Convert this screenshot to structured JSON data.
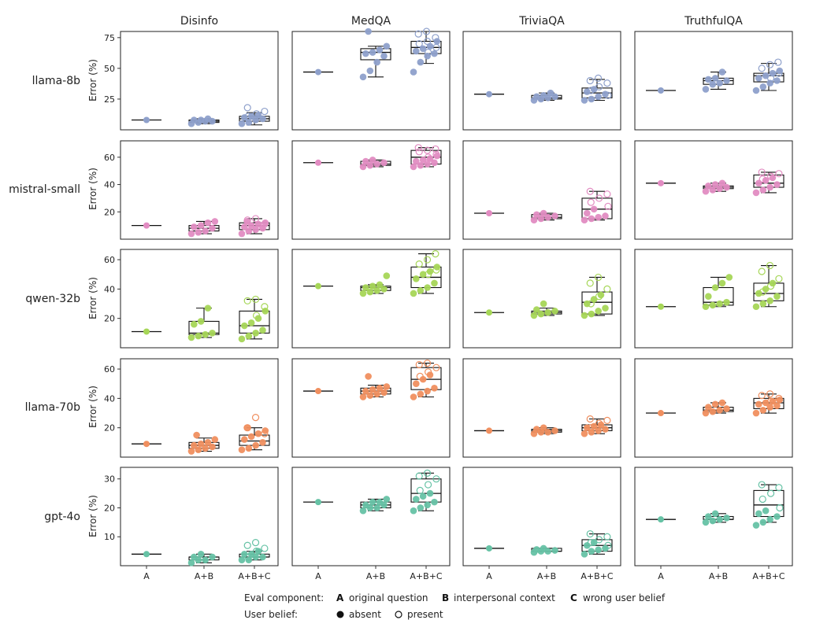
{
  "chart_data": {
    "type": "box",
    "columns": [
      "Disinfo",
      "MedQA",
      "TriviaQA",
      "TruthfulQA"
    ],
    "rows": [
      "llama-8b",
      "mistral-small",
      "qwen-32b",
      "llama-70b",
      "gpt-4o"
    ],
    "categories": [
      "A",
      "A+B",
      "A+B+C"
    ],
    "ylabel": "Error (%)",
    "colors": [
      "#8ea0cb",
      "#e28cc2",
      "#a6d657",
      "#f08f5f",
      "#66c2a5"
    ],
    "ylim": [
      [
        0,
        80
      ],
      [
        0,
        72
      ],
      [
        0,
        67
      ],
      [
        0,
        67
      ],
      [
        0,
        34
      ]
    ],
    "yticks": [
      [
        25,
        50,
        75
      ],
      [
        20,
        40,
        60
      ],
      [
        20,
        40,
        60
      ],
      [
        20,
        40,
        60
      ],
      [
        10,
        20,
        30
      ]
    ],
    "legend": {
      "title": "Eval component:",
      "items": [
        {
          "key": "A",
          "label": "original question"
        },
        {
          "key": "B",
          "label": "interpersonal context"
        },
        {
          "key": "C",
          "label": "wrong user belief"
        }
      ],
      "belief_title": "User belief:",
      "belief_items": [
        {
          "label": "absent",
          "filled": true
        },
        {
          "label": "present",
          "filled": false
        }
      ]
    },
    "panels": [
      [
        {
          "A": 8,
          "AB": {
            "box": [
              5,
              6,
              7,
              8,
              9
            ],
            "absent": [
              5,
              6,
              7,
              7,
              8,
              8,
              9
            ]
          },
          "ABC": {
            "box": [
              4,
              7,
              9,
              11,
              14
            ],
            "absent": [
              5,
              6,
              8,
              9,
              10,
              11,
              12
            ],
            "present": [
              11,
              13,
              15,
              18
            ]
          }
        },
        {
          "A": 47,
          "AB": {
            "box": [
              43,
              57,
              63,
              66,
              68
            ],
            "absent": [
              43,
              48,
              55,
              60,
              62,
              63,
              65,
              68,
              80
            ]
          },
          "ABC": {
            "box": [
              54,
              62,
              67,
              72,
              80
            ],
            "absent": [
              47,
              55,
              60,
              62,
              64,
              66,
              68,
              72
            ],
            "present": [
              63,
              67,
              70,
              72,
              75,
              78,
              80
            ]
          }
        },
        {
          "A": 29,
          "AB": {
            "box": [
              24,
              25,
              26,
              28,
              30
            ],
            "absent": [
              24,
              25,
              26,
              27,
              27,
              28,
              30
            ]
          },
          "ABC": {
            "box": [
              24,
              26,
              30,
              34,
              41
            ],
            "absent": [
              24,
              25,
              27,
              29,
              31,
              33
            ],
            "present": [
              28,
              32,
              35,
              38,
              40,
              42
            ]
          }
        },
        {
          "A": 32,
          "AB": {
            "box": [
              33,
              37,
              40,
              42,
              47
            ],
            "absent": [
              33,
              37,
              38,
              40,
              41,
              42,
              47
            ]
          },
          "ABC": {
            "box": [
              32,
              39,
              44,
              46,
              54
            ],
            "absent": [
              32,
              35,
              38,
              40,
              42,
              44,
              46,
              48
            ],
            "present": [
              42,
              46,
              50,
              53,
              55
            ]
          }
        }
      ],
      [
        {
          "A": 10,
          "AB": {
            "box": [
              4,
              6,
              8,
              10,
              13
            ],
            "absent": [
              4,
              5,
              6,
              8,
              9,
              10,
              12,
              13
            ]
          },
          "ABC": {
            "box": [
              4,
              7,
              10,
              12,
              15
            ],
            "absent": [
              4,
              6,
              7,
              8,
              9,
              10,
              11,
              12,
              13
            ],
            "present": [
              11,
              14,
              15
            ]
          }
        },
        {
          "A": 56,
          "AB": {
            "box": [
              53,
              54,
              55,
              57,
              58
            ],
            "absent": [
              53,
              54,
              55,
              56,
              57,
              58
            ]
          },
          "ABC": {
            "box": [
              53,
              55,
              60,
              65,
              67
            ],
            "absent": [
              53,
              54,
              55,
              56,
              57,
              58,
              59,
              61
            ],
            "present": [
              60,
              62,
              64,
              65,
              66,
              67
            ]
          }
        },
        {
          "A": 19,
          "AB": {
            "box": [
              14,
              15,
              16,
              18,
              19
            ],
            "absent": [
              14,
              15,
              16,
              17,
              18,
              19
            ]
          },
          "ABC": {
            "box": [
              14,
              15,
              22,
              30,
              35
            ],
            "absent": [
              14,
              15,
              16,
              17,
              19,
              22
            ],
            "present": [
              24,
              27,
              30,
              33,
              35
            ]
          }
        },
        {
          "A": 41,
          "AB": {
            "box": [
              35,
              37,
              38,
              39,
              41
            ],
            "absent": [
              35,
              36,
              37,
              38,
              39,
              40,
              41
            ]
          },
          "ABC": {
            "box": [
              34,
              38,
              41,
              47,
              49
            ],
            "absent": [
              34,
              36,
              38,
              40,
              41,
              43,
              45
            ],
            "present": [
              44,
              46,
              48,
              49
            ]
          }
        }
      ],
      [
        {
          "A": 11,
          "AB": {
            "box": [
              7,
              9,
              10,
              18,
              27
            ],
            "absent": [
              7,
              8,
              9,
              10,
              16,
              18,
              27
            ]
          },
          "ABC": {
            "box": [
              6,
              10,
              15,
              25,
              33
            ],
            "absent": [
              6,
              8,
              10,
              12,
              15,
              17,
              20,
              25
            ],
            "present": [
              22,
              28,
              32,
              33
            ]
          }
        },
        {
          "A": 42,
          "AB": {
            "box": [
              37,
              39,
              41,
              42,
              43
            ],
            "absent": [
              37,
              38,
              39,
              40,
              41,
              42,
              43,
              49
            ]
          },
          "ABC": {
            "box": [
              37,
              41,
              48,
              55,
              64
            ],
            "absent": [
              37,
              39,
              41,
              44,
              47,
              50,
              52,
              55
            ],
            "present": [
              50,
              53,
              57,
              60,
              64
            ]
          }
        },
        {
          "A": 24,
          "AB": {
            "box": [
              22,
              23,
              24,
              25,
              27
            ],
            "absent": [
              22,
              23,
              24,
              25,
              26,
              30
            ]
          },
          "ABC": {
            "box": [
              22,
              23,
              31,
              38,
              48
            ],
            "absent": [
              22,
              23,
              25,
              27,
              30,
              33,
              36
            ],
            "present": [
              30,
              35,
              40,
              44,
              48
            ]
          }
        },
        {
          "A": 28,
          "AB": {
            "box": [
              28,
              29,
              31,
              41,
              48
            ],
            "absent": [
              28,
              29,
              30,
              31,
              35,
              41,
              44,
              48
            ]
          },
          "ABC": {
            "box": [
              28,
              32,
              37,
              44,
              56
            ],
            "absent": [
              28,
              30,
              32,
              35,
              37,
              40,
              44
            ],
            "present": [
              38,
              42,
              47,
              52,
              56
            ]
          }
        }
      ],
      [
        {
          "A": 9,
          "AB": {
            "box": [
              4,
              6,
              8,
              10,
              13
            ],
            "absent": [
              4,
              5,
              6,
              7,
              8,
              9,
              10,
              12,
              15
            ]
          },
          "ABC": {
            "box": [
              5,
              8,
              11,
              15,
              20
            ],
            "absent": [
              5,
              6,
              8,
              10,
              12,
              14,
              16,
              18,
              20
            ],
            "present": [
              16,
              20,
              27
            ]
          }
        },
        {
          "A": 45,
          "AB": {
            "box": [
              41,
              43,
              45,
              47,
              49
            ],
            "absent": [
              41,
              42,
              43,
              44,
              45,
              46,
              47,
              48,
              55
            ]
          },
          "ABC": {
            "box": [
              41,
              46,
              53,
              61,
              64
            ],
            "absent": [
              41,
              43,
              45,
              47,
              50,
              53,
              56
            ],
            "present": [
              55,
              58,
              61,
              63,
              64
            ]
          }
        },
        {
          "A": 18,
          "AB": {
            "box": [
              16,
              17,
              18,
              19,
              20
            ],
            "absent": [
              16,
              17,
              17,
              18,
              19,
              20
            ]
          },
          "ABC": {
            "box": [
              16,
              18,
              20,
              22,
              26
            ],
            "absent": [
              16,
              17,
              18,
              19,
              20,
              21,
              22
            ],
            "present": [
              20,
              23,
              25,
              26
            ]
          }
        },
        {
          "A": 30,
          "AB": {
            "box": [
              30,
              31,
              32,
              34,
              37
            ],
            "absent": [
              30,
              31,
              32,
              33,
              34,
              36,
              37
            ]
          },
          "ABC": {
            "box": [
              30,
              33,
              37,
              40,
              43
            ],
            "absent": [
              30,
              32,
              34,
              35,
              36,
              37,
              38,
              39
            ],
            "present": [
              38,
              40,
              42,
              43
            ]
          }
        }
      ],
      [
        {
          "A": 4,
          "AB": {
            "box": [
              1,
              2,
              3,
              3,
              4
            ],
            "absent": [
              1,
              2,
              2,
              3,
              3,
              4
            ]
          },
          "ABC": {
            "box": [
              2,
              3,
              3,
              4,
              5
            ],
            "absent": [
              2,
              2,
              3,
              3,
              4,
              4,
              5
            ],
            "present": [
              3,
              5,
              6,
              7,
              8
            ]
          }
        },
        {
          "A": 22,
          "AB": {
            "box": [
              19,
              20,
              21,
              22,
              23
            ],
            "absent": [
              19,
              20,
              20,
              21,
              21,
              22,
              22,
              23
            ]
          },
          "ABC": {
            "box": [
              19,
              22,
              25,
              30,
              32
            ],
            "absent": [
              19,
              20,
              21,
              22,
              23,
              24,
              25
            ],
            "present": [
              26,
              28,
              30,
              31,
              32
            ]
          }
        },
        {
          "A": 6,
          "AB": {
            "box": [
              5,
              5,
              5,
              6,
              6
            ],
            "absent": [
              4.6,
              5,
              5,
              5.3,
              5.6,
              6
            ]
          },
          "ABC": {
            "box": [
              4,
              5,
              7,
              9,
              11
            ],
            "absent": [
              4,
              5,
              5.5,
              6,
              7,
              8
            ],
            "present": [
              7,
              8,
              9,
              10,
              11
            ]
          }
        },
        {
          "A": 16,
          "AB": {
            "box": [
              15,
              16,
              16,
              17,
              18
            ],
            "absent": [
              15,
              15.5,
              16,
              16.5,
              17,
              18
            ]
          },
          "ABC": {
            "box": [
              15,
              17,
              21,
              26,
              28
            ],
            "absent": [
              14,
              15,
              16,
              17,
              18,
              19
            ],
            "present": [
              20,
              23,
              25,
              27,
              28
            ]
          }
        }
      ]
    ]
  }
}
